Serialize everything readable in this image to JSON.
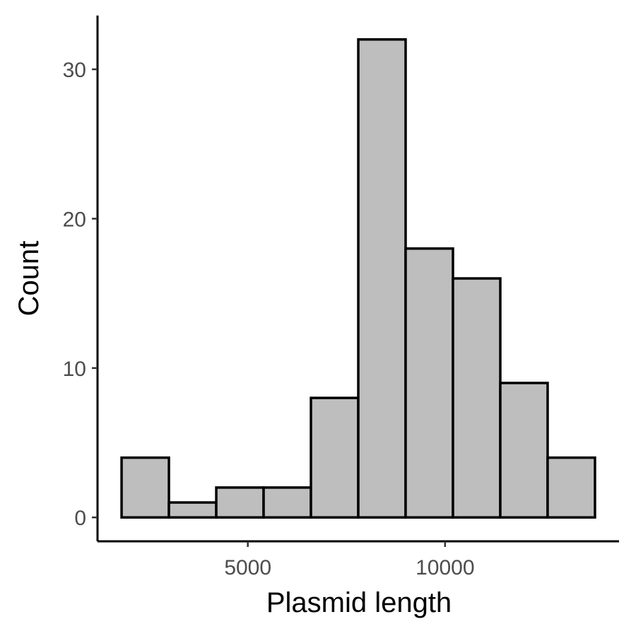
{
  "chart_data": {
    "type": "bar",
    "title": "",
    "xlabel": "Plasmid length",
    "ylabel": "Count",
    "bins": [
      {
        "x0": 1800,
        "x1": 3000,
        "count": 4
      },
      {
        "x0": 3000,
        "x1": 4200,
        "count": 1
      },
      {
        "x0": 4200,
        "x1": 5400,
        "count": 2
      },
      {
        "x0": 5400,
        "x1": 6600,
        "count": 2
      },
      {
        "x0": 6600,
        "x1": 7800,
        "count": 8
      },
      {
        "x0": 7800,
        "x1": 9000,
        "count": 32
      },
      {
        "x0": 9000,
        "x1": 10200,
        "count": 18
      },
      {
        "x0": 10200,
        "x1": 11400,
        "count": 16
      },
      {
        "x0": 11400,
        "x1": 12600,
        "count": 9
      },
      {
        "x0": 12600,
        "x1": 13800,
        "count": 4
      }
    ],
    "xticks": [
      5000,
      10000
    ],
    "xtick_labels": [
      "5000",
      "10000"
    ],
    "yticks": [
      0,
      10,
      20,
      30
    ],
    "ytick_labels": [
      "0",
      "10",
      "20",
      "30"
    ],
    "xlim": [
      1190,
      14410
    ],
    "ylim": [
      -1.6,
      33.6
    ],
    "grid": false,
    "legend": "none",
    "bar_fill": "#bebebe",
    "bar_stroke": "#000000",
    "tick_label_color": "#4d4d4d"
  }
}
